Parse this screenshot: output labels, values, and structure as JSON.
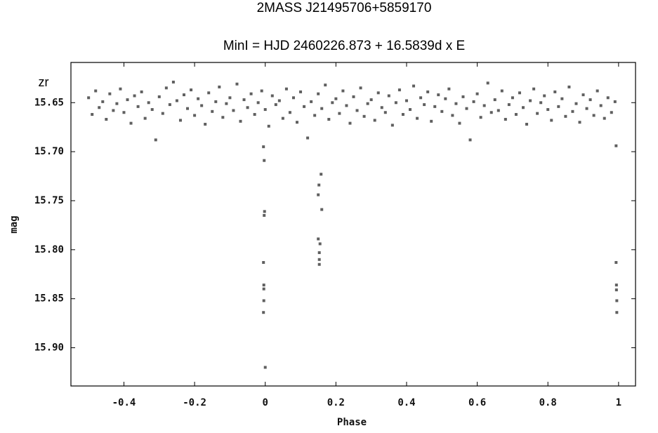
{
  "chart_data": {
    "type": "scatter",
    "title": "2MASS J21495706+5859170",
    "subtitle": "MinI = HJD 2460226.873 + 16.5839d x E",
    "band_label": "zr",
    "x_label": "Phase",
    "y_label": "mag",
    "color": "#5f5f5f",
    "grid": false,
    "xlim": [
      -0.55,
      1.048
    ],
    "ylim": [
      15.939,
      15.609
    ],
    "xticks": [
      -0.4,
      -0.2,
      0,
      0.2,
      0.4,
      0.6,
      0.8,
      1
    ],
    "yticks": [
      15.65,
      {
        "value": 15.7,
        "label": "15.70"
      },
      15.75,
      {
        "value": 15.8,
        "label": "15.80"
      },
      15.85,
      {
        "value": 15.9,
        "label": "15.90"
      }
    ],
    "x": [
      -0.5,
      -0.49,
      -0.48,
      -0.47,
      -0.46,
      -0.45,
      -0.44,
      -0.43,
      -0.42,
      -0.41,
      -0.4,
      -0.39,
      -0.38,
      -0.37,
      -0.36,
      -0.35,
      -0.34,
      -0.33,
      -0.32,
      -0.31,
      -0.3,
      -0.29,
      -0.28,
      -0.27,
      -0.26,
      -0.25,
      -0.24,
      -0.23,
      -0.22,
      -0.21,
      -0.2,
      -0.19,
      -0.18,
      -0.17,
      -0.16,
      -0.15,
      -0.14,
      -0.13,
      -0.12,
      -0.11,
      -0.1,
      -0.09,
      -0.08,
      -0.07,
      -0.06,
      -0.05,
      -0.04,
      -0.03,
      -0.02,
      -0.01,
      0,
      0.01,
      0.02,
      0.03,
      0.04,
      0.05,
      0.06,
      0.07,
      0.08,
      0.09,
      0.1,
      0.11,
      0.12,
      0.13,
      0.14,
      0.15,
      0.16,
      0.17,
      0.18,
      0.19,
      0.2,
      0.21,
      0.22,
      0.23,
      0.24,
      0.25,
      0.26,
      0.27,
      0.28,
      0.29,
      0.3,
      0.31,
      0.32,
      0.33,
      0.34,
      0.35,
      0.36,
      0.37,
      0.38,
      0.39,
      0.4,
      0.41,
      0.42,
      0.43,
      0.44,
      0.45,
      0.46,
      0.47,
      0.48,
      0.49,
      0.5,
      0.51,
      0.52,
      0.53,
      0.54,
      0.55,
      0.56,
      0.57,
      0.58,
      0.59,
      0.6,
      0.61,
      0.62,
      0.63,
      0.64,
      0.65,
      0.66,
      0.67,
      0.68,
      0.69,
      0.7,
      0.71,
      0.72,
      0.73,
      0.74,
      0.75,
      0.76,
      0.77,
      0.78,
      0.79,
      0.8,
      0.81,
      0.82,
      0.83,
      0.84,
      0.85,
      0.86,
      0.87,
      0.88,
      0.89,
      0.9,
      0.91,
      0.92,
      0.93,
      0.94,
      0.95,
      0.96,
      0.97,
      0.98,
      0.99,
      -0.005,
      -0.003,
      -0.002,
      -0.003,
      -0.005,
      -0.004,
      -0.004,
      -0.004,
      -0.005,
      0,
      0.158,
      0.152,
      0.15,
      0.16,
      0.15,
      0.155,
      0.153,
      0.153,
      0.153,
      0.993,
      0.993,
      0.994,
      0.994,
      0.995,
      0.995
    ],
    "values": [
      15.645,
      15.662,
      15.638,
      15.655,
      15.649,
      15.667,
      15.641,
      15.658,
      15.651,
      15.636,
      15.66,
      15.647,
      15.671,
      15.643,
      15.654,
      15.639,
      15.666,
      15.65,
      15.657,
      15.688,
      15.644,
      15.661,
      15.635,
      15.652,
      15.629,
      15.648,
      15.668,
      15.642,
      15.656,
      15.637,
      15.663,
      15.646,
      15.653,
      15.672,
      15.64,
      15.659,
      15.649,
      15.634,
      15.665,
      15.651,
      15.645,
      15.658,
      15.631,
      15.669,
      15.647,
      15.655,
      15.641,
      15.662,
      15.65,
      15.638,
      15.657,
      15.674,
      15.643,
      15.652,
      15.648,
      15.666,
      15.636,
      15.66,
      15.645,
      15.67,
      15.639,
      15.654,
      15.686,
      15.649,
      15.663,
      15.641,
      15.656,
      15.632,
      15.667,
      15.65,
      15.646,
      15.661,
      15.638,
      15.653,
      15.671,
      15.644,
      15.658,
      15.635,
      15.664,
      15.651,
      15.647,
      15.668,
      15.64,
      15.655,
      15.66,
      15.643,
      15.673,
      15.65,
      15.637,
      15.662,
      15.648,
      15.657,
      15.633,
      15.666,
      15.645,
      15.652,
      15.639,
      15.669,
      15.654,
      15.642,
      15.659,
      15.646,
      15.636,
      15.663,
      15.651,
      15.671,
      15.644,
      15.656,
      15.688,
      15.649,
      15.641,
      15.665,
      15.653,
      15.63,
      15.66,
      15.647,
      15.658,
      15.638,
      15.667,
      15.652,
      15.645,
      15.662,
      15.64,
      15.655,
      15.672,
      15.648,
      15.636,
      15.661,
      15.65,
      15.643,
      15.657,
      15.668,
      15.639,
      15.654,
      15.646,
      15.664,
      15.634,
      15.659,
      15.651,
      15.67,
      15.642,
      15.656,
      15.647,
      15.663,
      15.638,
      15.653,
      15.666,
      15.645,
      15.66,
      15.649,
      15.695,
      15.709,
      15.761,
      15.765,
      15.813,
      15.836,
      15.84,
      15.852,
      15.864,
      15.92,
      15.723,
      15.734,
      15.744,
      15.759,
      15.789,
      15.794,
      15.803,
      15.81,
      15.815,
      15.694,
      15.813,
      15.836,
      15.841,
      15.852,
      15.864
    ]
  }
}
